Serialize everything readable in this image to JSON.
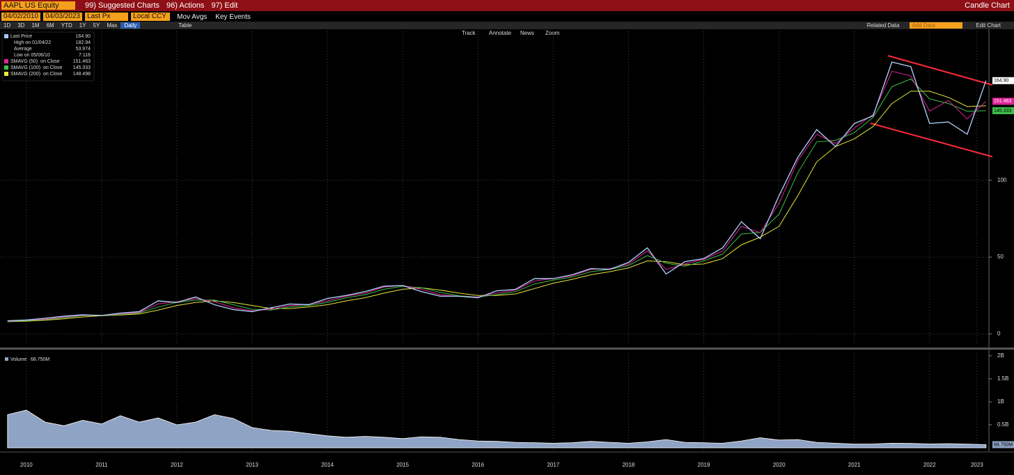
{
  "header": {
    "ticker": "AAPL US Equity",
    "menus": [
      "99) Suggested Charts",
      "96) Actions",
      "97) Edit"
    ],
    "chart_kind": "Candle Chart"
  },
  "controls": {
    "start_date": "04/02/2010",
    "end_date": "04/03/2023",
    "field": "Last Px",
    "currency": "Local CCY",
    "mov_avgs": "Mov Avgs",
    "key_events": "Key Events"
  },
  "toolbar": {
    "ranges": [
      "1D",
      "3D",
      "1M",
      "6M",
      "YTD",
      "1Y",
      "5Y",
      "Max"
    ],
    "frequency": "Daily",
    "table": "Table",
    "related": "Related Data",
    "add_data": "Add Data",
    "edit_chart": "Edit Chart",
    "tools": [
      "Track",
      "Annotate",
      "News",
      "Zoom"
    ]
  },
  "chart_data": [
    {
      "type": "line",
      "legend": "top-left",
      "grid": true,
      "x": [
        2010.25,
        2010.5,
        2010.75,
        2011,
        2011.25,
        2011.5,
        2011.75,
        2012,
        2012.25,
        2012.5,
        2012.75,
        2013,
        2013.25,
        2013.5,
        2013.75,
        2014,
        2014.25,
        2014.5,
        2014.75,
        2015,
        2015.25,
        2015.5,
        2015.75,
        2016,
        2016.25,
        2016.5,
        2016.75,
        2017,
        2017.25,
        2017.5,
        2017.75,
        2018,
        2018.25,
        2018.5,
        2018.75,
        2019,
        2019.25,
        2019.5,
        2019.75,
        2020,
        2020.25,
        2020.5,
        2020.75,
        2021,
        2021.25,
        2021.5,
        2021.75,
        2022,
        2022.25,
        2022.5,
        2022.75,
        2023,
        2023.25
      ],
      "xlim": [
        2010.15,
        2023.27
      ],
      "ylim": [
        -8,
        197
      ],
      "yticks": [
        0,
        50,
        100
      ],
      "series": [
        {
          "name": "Last Price",
          "color": "#a9c8f0",
          "legend_value": "164.90",
          "values": [
            8.5,
            9.0,
            10.2,
            11.5,
            12.4,
            12.0,
            13.5,
            14.5,
            21.5,
            20.5,
            24.0,
            19.0,
            15.8,
            14.5,
            17.0,
            19.5,
            19.0,
            23.0,
            25.0,
            27.5,
            31.0,
            31.5,
            27.5,
            24.5,
            24.5,
            23.5,
            28.0,
            29.0,
            36.0,
            36.0,
            38.5,
            42.5,
            42.0,
            46.5,
            56.0,
            39.0,
            47.0,
            49.0,
            56.0,
            73.0,
            62.0,
            90.0,
            115.0,
            133.0,
            122.0,
            137.0,
            142.0,
            177.0,
            174.0,
            137.0,
            138.0,
            130.0,
            164.9
          ]
        },
        {
          "name": "SMAVG (50)  on Close",
          "color": "#e0249a",
          "legend_value": "151.463",
          "values": [
            8.3,
            8.9,
            9.6,
            11.0,
            12.1,
            12.1,
            13.0,
            14.0,
            19.5,
            21.0,
            23.0,
            21.0,
            17.0,
            15.0,
            16.0,
            18.5,
            19.2,
            21.5,
            24.5,
            26.5,
            30.5,
            31.5,
            29.0,
            25.5,
            24.3,
            24.0,
            26.5,
            28.5,
            34.5,
            36.0,
            37.8,
            42.0,
            42.5,
            45.5,
            54.0,
            42.0,
            45.5,
            48.5,
            54.0,
            70.0,
            66.0,
            85.0,
            113.0,
            130.0,
            124.0,
            134.0,
            143.0,
            171.0,
            168.0,
            145.0,
            152.0,
            140.0,
            151.463
          ]
        },
        {
          "name": "SMAVG (100)  on Close",
          "color": "#3fbf4a",
          "legend_value": "145.333",
          "values": [
            8.1,
            8.6,
            9.3,
            10.5,
            11.8,
            12.0,
            12.6,
            13.6,
            17.5,
            20.5,
            22.0,
            22.0,
            19.0,
            16.0,
            15.5,
            17.5,
            18.5,
            20.5,
            23.5,
            25.5,
            29.0,
            31.0,
            30.0,
            27.0,
            24.8,
            24.0,
            25.5,
            27.5,
            32.5,
            35.0,
            37.0,
            40.5,
            42.0,
            44.5,
            51.0,
            46.0,
            44.0,
            47.5,
            52.0,
            65.0,
            66.0,
            78.0,
            105.0,
            125.0,
            126.0,
            131.0,
            141.0,
            161.0,
            166.0,
            153.0,
            150.0,
            145.0,
            145.333
          ]
        },
        {
          "name": "SMAVG (200)  on Close",
          "color": "#e8e83a",
          "legend_value": "148.498",
          "values": [
            7.9,
            8.3,
            8.9,
            9.8,
            11.0,
            11.8,
            12.3,
            13.0,
            15.5,
            18.5,
            20.5,
            21.5,
            20.5,
            18.5,
            16.5,
            16.5,
            17.5,
            19.0,
            21.5,
            23.5,
            26.5,
            29.0,
            30.0,
            28.5,
            26.5,
            25.0,
            25.0,
            26.0,
            29.5,
            33.0,
            35.5,
            38.5,
            40.5,
            43.0,
            47.5,
            47.0,
            45.0,
            45.5,
            49.0,
            58.0,
            63.0,
            70.0,
            90.0,
            112.0,
            122.0,
            127.0,
            135.0,
            150.0,
            158.0,
            158.0,
            154.0,
            148.0,
            148.498
          ]
        }
      ],
      "stats": [
        {
          "label": "High on 01/04/22",
          "value": "182.94"
        },
        {
          "label": "Average",
          "value": "53.974"
        },
        {
          "label": "Low on 05/06/10",
          "value": "7.116"
        }
      ]
    },
    {
      "type": "area",
      "title": "Volume",
      "color": "#8fa3c4",
      "last_label": "68.750M",
      "x": [
        2010.25,
        2010.5,
        2010.75,
        2011,
        2011.25,
        2011.5,
        2011.75,
        2012,
        2012.25,
        2012.5,
        2012.75,
        2013,
        2013.25,
        2013.5,
        2013.75,
        2014,
        2014.25,
        2014.5,
        2014.75,
        2015,
        2015.25,
        2015.5,
        2015.75,
        2016,
        2016.25,
        2016.5,
        2016.75,
        2017,
        2017.25,
        2017.5,
        2017.75,
        2018,
        2018.25,
        2018.5,
        2018.75,
        2019,
        2019.25,
        2019.5,
        2019.75,
        2020,
        2020.25,
        2020.5,
        2020.75,
        2021,
        2021.25,
        2021.5,
        2021.75,
        2022,
        2022.25,
        2022.5,
        2022.75,
        2023,
        2023.25
      ],
      "values": [
        720000000,
        820000000,
        560000000,
        480000000,
        600000000,
        520000000,
        700000000,
        560000000,
        650000000,
        500000000,
        560000000,
        720000000,
        640000000,
        440000000,
        380000000,
        360000000,
        310000000,
        260000000,
        230000000,
        250000000,
        230000000,
        200000000,
        240000000,
        230000000,
        180000000,
        150000000,
        140000000,
        120000000,
        110000000,
        100000000,
        110000000,
        140000000,
        120000000,
        100000000,
        130000000,
        180000000,
        120000000,
        110000000,
        100000000,
        150000000,
        220000000,
        170000000,
        180000000,
        120000000,
        100000000,
        80000000,
        85000000,
        100000000,
        95000000,
        85000000,
        90000000,
        80000000,
        68750000
      ],
      "xlim": [
        2010.15,
        2023.27
      ],
      "xticks": [
        {
          "value": 2010.5,
          "label": "2010"
        },
        {
          "value": 2011.5,
          "label": "2011"
        },
        {
          "value": 2012.5,
          "label": "2012"
        },
        {
          "value": 2013.5,
          "label": "2013"
        },
        {
          "value": 2014.5,
          "label": "2014"
        },
        {
          "value": 2015.5,
          "label": "2015"
        },
        {
          "value": 2016.5,
          "label": "2016"
        },
        {
          "value": 2017.5,
          "label": "2017"
        },
        {
          "value": 2018.5,
          "label": "2018"
        },
        {
          "value": 2019.5,
          "label": "2019"
        },
        {
          "value": 2020.5,
          "label": "2020"
        },
        {
          "value": 2021.5,
          "label": "2021"
        },
        {
          "value": 2022.5,
          "label": "2022"
        },
        {
          "value": 2023.13,
          "label": "2023"
        }
      ],
      "ylim": [
        -76000000,
        2090000000
      ],
      "yticks": [
        {
          "value": 500000000,
          "label": "0.5B"
        },
        {
          "value": 1000000000,
          "label": "1B"
        },
        {
          "value": 1500000000,
          "label": "1.5B"
        },
        {
          "value": 2000000000,
          "label": "2B"
        }
      ]
    }
  ]
}
